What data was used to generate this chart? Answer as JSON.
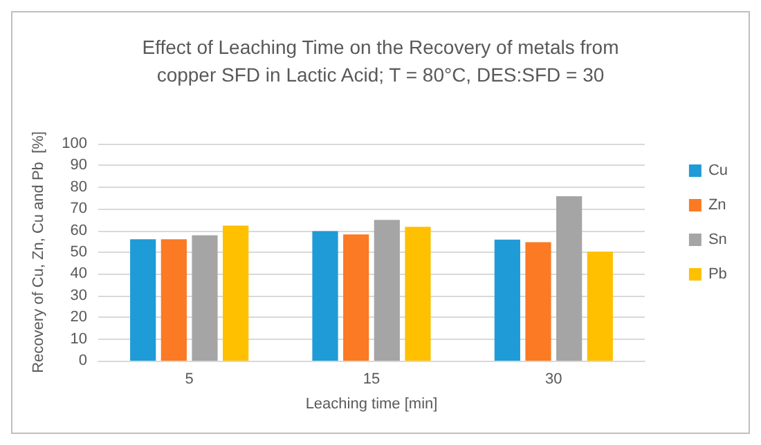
{
  "chart_data": {
    "type": "bar",
    "title": "Effect of Leaching Time on the Recovery of metals from\ncopper SFD in Lactic Acid; T = 80°C, DES:SFD = 30",
    "xlabel": "Leaching time [min]",
    "ylabel": "Recovery of Cu, Zn, Cu and Pb  [%]",
    "categories": [
      "5",
      "15",
      "30"
    ],
    "series": [
      {
        "name": "Cu",
        "color": "#1f9bd7",
        "values": [
          56,
          59.7,
          55.8
        ]
      },
      {
        "name": "Zn",
        "color": "#fb7a23",
        "values": [
          56,
          58.2,
          54.6
        ]
      },
      {
        "name": "Sn",
        "color": "#a5a5a5",
        "values": [
          57.8,
          64.9,
          75.8
        ]
      },
      {
        "name": "Pb",
        "color": "#ffc000",
        "values": [
          62.3,
          61.7,
          50.2
        ]
      }
    ],
    "ylim": [
      0,
      100
    ],
    "yticks": [
      0,
      10,
      20,
      30,
      40,
      50,
      60,
      70,
      80,
      90,
      100
    ],
    "grid": "y",
    "legend": "right"
  }
}
